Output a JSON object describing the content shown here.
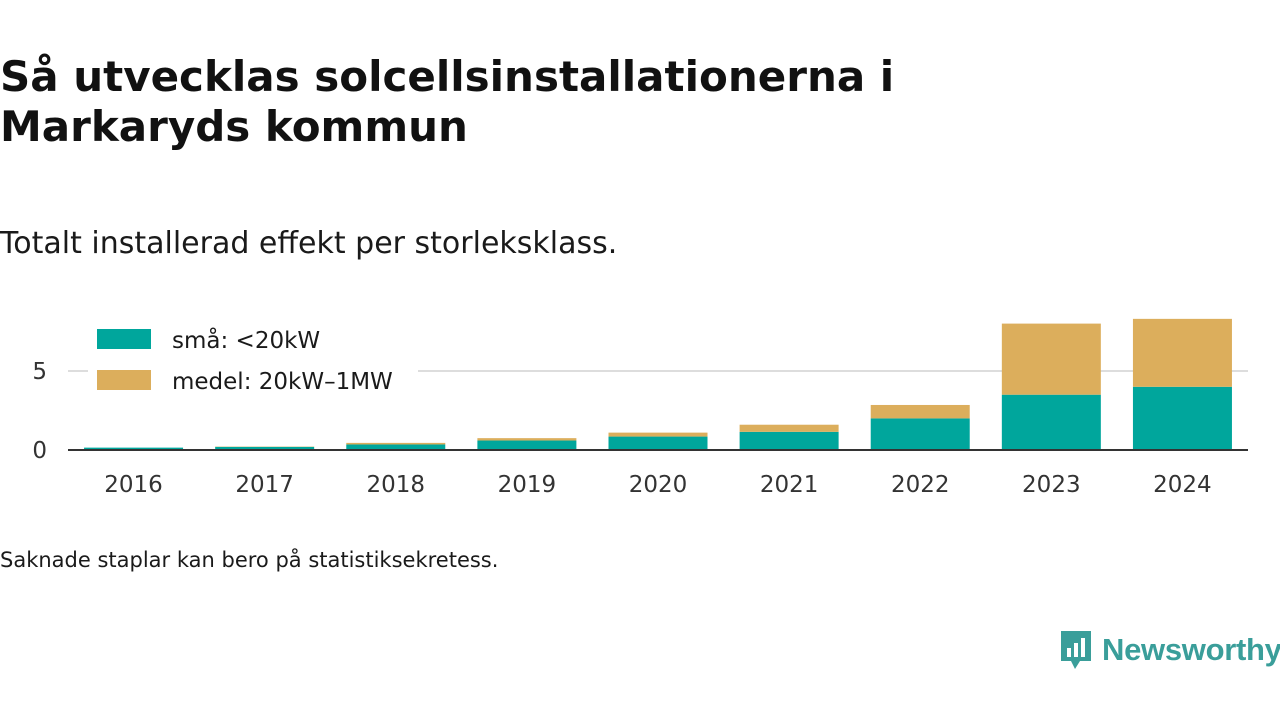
{
  "title": "Så utvecklas solcellsinstallationerna i Markaryds kommun",
  "subtitle": "Totalt installerad effekt per storleksklass.",
  "footnote": "Saknade staplar kan bero på statistiksekretess.",
  "brand": {
    "name": "Newsworthy",
    "icon": "newsworthy-logo-icon",
    "color": "#3a9e9a"
  },
  "chart_data": {
    "type": "bar",
    "stacked": true,
    "categories": [
      "2016",
      "2017",
      "2018",
      "2019",
      "2020",
      "2021",
      "2022",
      "2023",
      "2024"
    ],
    "series": [
      {
        "name": "små: <20kW",
        "color": "#00a69c",
        "values": [
          0.15,
          0.2,
          0.35,
          0.6,
          0.85,
          1.15,
          2.0,
          3.5,
          4.0
        ]
      },
      {
        "name": "medel: 20kW–1MW",
        "color": "#dcae5c",
        "values": [
          0.0,
          0.02,
          0.1,
          0.15,
          0.25,
          0.45,
          0.85,
          4.5,
          4.3
        ]
      }
    ],
    "yticks": [
      0,
      5
    ],
    "ylim": [
      0,
      8.7
    ],
    "grid": true,
    "legend_position": "top-left",
    "xlabel": "",
    "ylabel": ""
  }
}
